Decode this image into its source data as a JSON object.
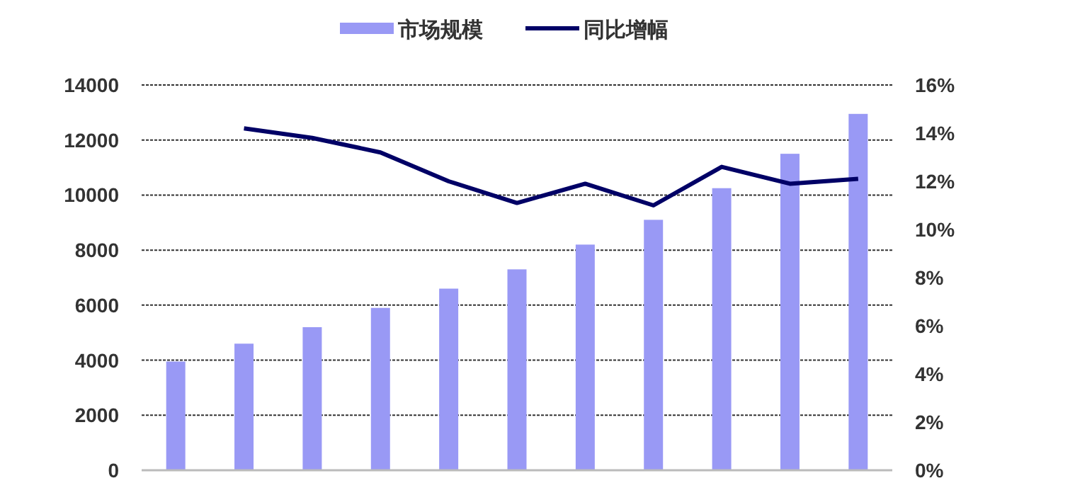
{
  "chart_data": {
    "type": "bar",
    "categories": [
      null,
      null,
      null,
      null,
      null,
      null,
      null,
      null,
      null,
      null,
      null
    ],
    "series": [
      {
        "name": "市场规模",
        "color": "#9999f5",
        "values": [
          3950,
          4600,
          5200,
          5900,
          6600,
          7300,
          8200,
          9100,
          10250,
          11500,
          12950
        ]
      },
      {
        "name": "同比增幅",
        "type": "line",
        "axis": "y2",
        "color": "#000066",
        "values": [
          null,
          14.2,
          13.8,
          13.2,
          12.0,
          11.1,
          11.9,
          11.0,
          12.6,
          11.9,
          12.1
        ]
      }
    ],
    "ylim": [
      0,
      14000
    ],
    "yticks": [
      0,
      2000,
      4000,
      6000,
      8000,
      10000,
      12000,
      14000
    ],
    "y2lim": [
      0,
      16
    ],
    "y2ticks": [
      {
        "value": 0,
        "label": "0%"
      },
      {
        "value": 2,
        "label": "2%"
      },
      {
        "value": 4,
        "label": "4%"
      },
      {
        "value": 6,
        "label": "6%"
      },
      {
        "value": 8,
        "label": "8%"
      },
      {
        "value": 10,
        "label": "10%"
      },
      {
        "value": 12,
        "label": "12%"
      },
      {
        "value": 14,
        "label": "14%"
      },
      {
        "value": 16,
        "label": "16%"
      }
    ],
    "grid": "y",
    "legend": "top",
    "marker": "none",
    "line_style": "solid"
  }
}
